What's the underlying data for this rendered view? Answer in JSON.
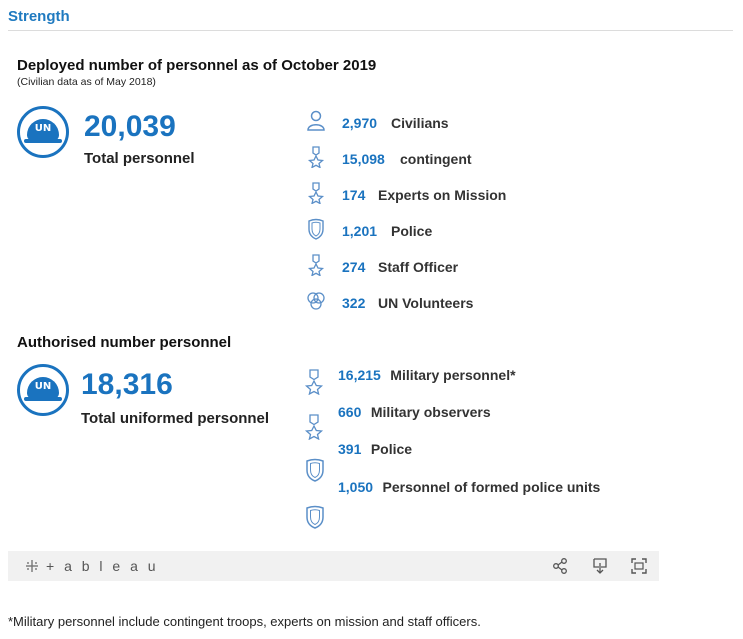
{
  "header": {
    "title": "Strength"
  },
  "deployed": {
    "title": "Deployed number of personnel as of October 2019",
    "subtitle": "(Civilian data as of May 2018)",
    "badge_text": "UN",
    "total": "20,039",
    "total_label": "Total personnel",
    "items": [
      {
        "value": "2,970",
        "label": "Civilians",
        "icon": "civilian-icon"
      },
      {
        "value": "15,098",
        "label": "contingent",
        "icon": "medal-icon"
      },
      {
        "value": "174",
        "label": "Experts on Mission",
        "icon": "medal-icon"
      },
      {
        "value": "1,201",
        "label": "Police",
        "icon": "shield-icon"
      },
      {
        "value": "274",
        "label": "Staff Officer",
        "icon": "medal-icon"
      },
      {
        "value": "322",
        "label": "UN Volunteers",
        "icon": "volunteers-icon"
      }
    ]
  },
  "authorised": {
    "title": "Authorised number personnel",
    "badge_text": "UN",
    "total": "18,316",
    "total_label": "Total uniformed personnel",
    "items": [
      {
        "value": "16,215",
        "label": "Military personnel*",
        "icon": "medal-icon"
      },
      {
        "value": "660",
        "label": "Military observers",
        "icon": "medal-icon"
      },
      {
        "value": "391",
        "label": "Police",
        "icon": "shield-icon"
      },
      {
        "value": "1,050",
        "label": "Personnel of formed police units",
        "icon": "shield-icon"
      }
    ]
  },
  "toolbar": {
    "logo_text": "+ a b l e a u",
    "buttons": [
      "share-icon",
      "download-icon",
      "fullscreen-icon"
    ]
  },
  "footnote": "*Military personnel include contingent troops, experts on mission and staff officers.",
  "colors": {
    "accent": "#1a73bf",
    "title_blue": "#1f7ac0",
    "icon_blue": "#5b8fc8"
  }
}
